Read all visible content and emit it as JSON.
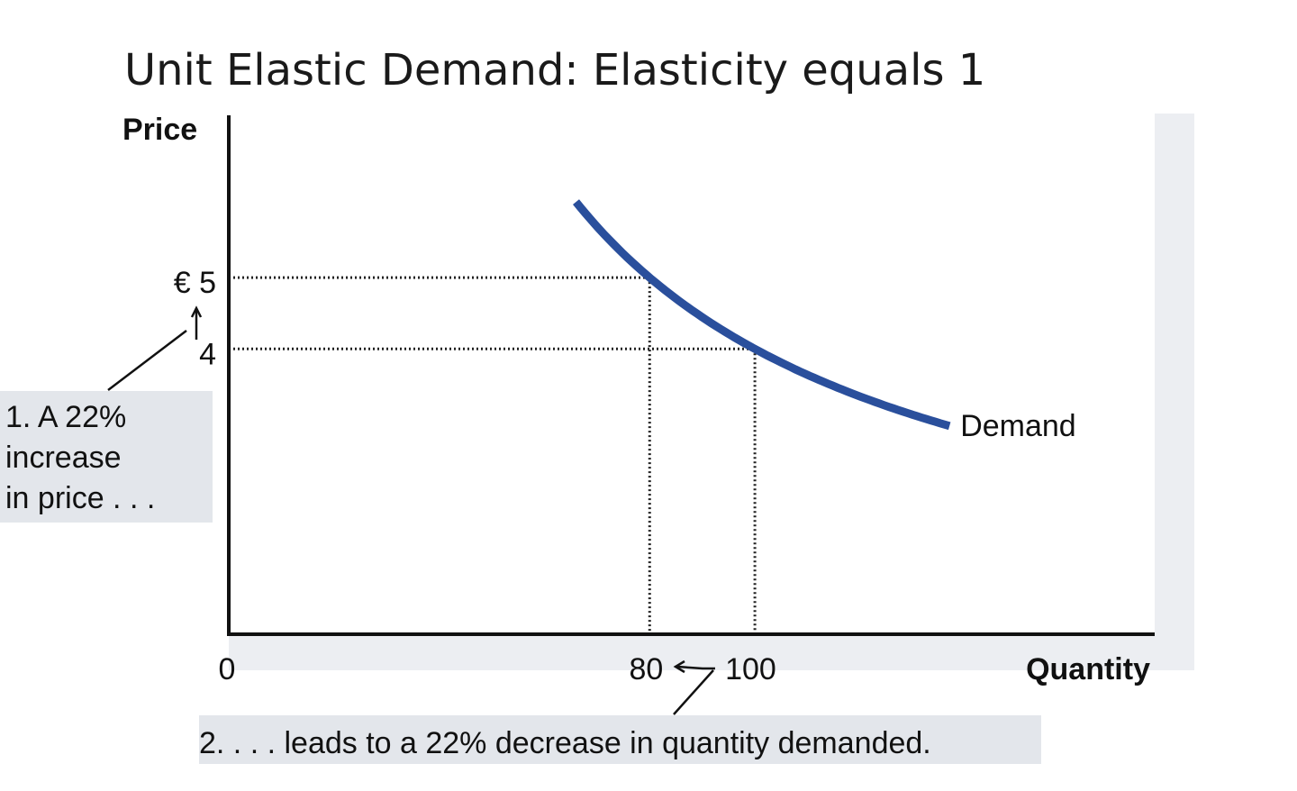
{
  "chart_data": {
    "type": "line",
    "title": "Unit Elastic Demand: Elasticity equals 1",
    "xlabel": "Quantity",
    "ylabel": "Price",
    "origin_label": "0",
    "x_ticks": [
      {
        "value": 80,
        "label": "80"
      },
      {
        "value": 100,
        "label": "100"
      }
    ],
    "y_ticks": [
      {
        "value": 5,
        "label": "€ 5"
      },
      {
        "value": 4,
        "label": "4"
      }
    ],
    "xlim": [
      0,
      176
    ],
    "ylim": [
      0,
      7.3
    ],
    "grid": false,
    "series": [
      {
        "name": "Demand",
        "color": "#2a4f9c",
        "function": "price = 400 / quantity",
        "x_range": [
          66,
          137
        ]
      }
    ],
    "reference_points": [
      {
        "x": 80,
        "y": 5
      },
      {
        "x": 100,
        "y": 4
      }
    ],
    "annotations": {
      "price_note": [
        "1. A 22%",
        "increase",
        "in price . . ."
      ],
      "quantity_note": "2. . . . leads to a 22% decrease in quantity demanded."
    },
    "colors": {
      "curve": "#2a4f9c",
      "note_background": "#e3e6eb",
      "plot_shadow": "#eceef2"
    }
  }
}
